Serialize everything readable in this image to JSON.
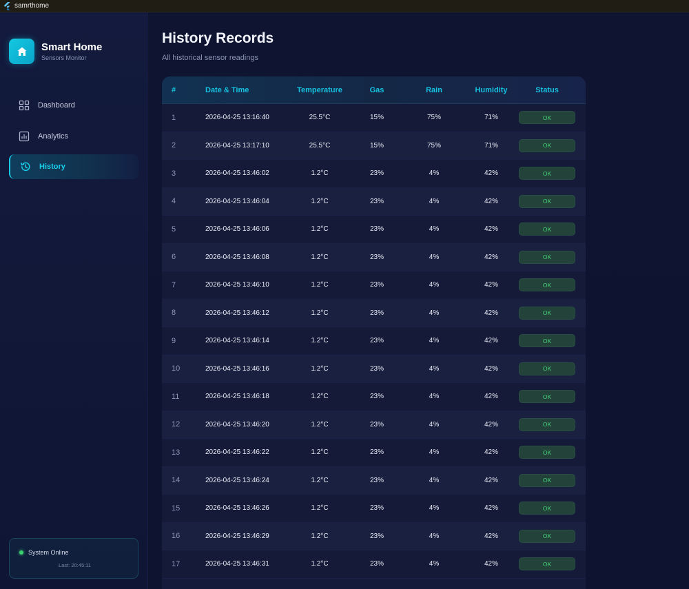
{
  "window": {
    "title": "samrthome",
    "icon": "flutter-icon"
  },
  "brand": {
    "title": "Smart Home",
    "subtitle": "Sensors Monitor",
    "icon": "home-icon"
  },
  "nav": {
    "items": [
      {
        "label": "Dashboard",
        "icon": "grid-icon",
        "active": false
      },
      {
        "label": "Analytics",
        "icon": "bar-chart-icon",
        "active": false
      },
      {
        "label": "History",
        "icon": "history-icon",
        "active": true
      }
    ]
  },
  "system_status": {
    "label": "System Online",
    "last": "Last: 20:45:11"
  },
  "page": {
    "title": "History Records",
    "subtitle": "All historical sensor readings"
  },
  "table": {
    "columns": [
      "#",
      "Date & Time",
      "Temperature",
      "Gas",
      "Rain",
      "Humidity",
      "Status"
    ],
    "rows": [
      {
        "idx": "1",
        "datetime": "2026-04-25 13:16:40",
        "temperature": "25.5°C",
        "gas": "15%",
        "rain": "75%",
        "humidity": "71%",
        "status": "OK"
      },
      {
        "idx": "2",
        "datetime": "2026-04-25 13:17:10",
        "temperature": "25.5°C",
        "gas": "15%",
        "rain": "75%",
        "humidity": "71%",
        "status": "OK"
      },
      {
        "idx": "3",
        "datetime": "2026-04-25 13:46:02",
        "temperature": "1.2°C",
        "gas": "23%",
        "rain": "4%",
        "humidity": "42%",
        "status": "OK"
      },
      {
        "idx": "4",
        "datetime": "2026-04-25 13:46:04",
        "temperature": "1.2°C",
        "gas": "23%",
        "rain": "4%",
        "humidity": "42%",
        "status": "OK"
      },
      {
        "idx": "5",
        "datetime": "2026-04-25 13:46:06",
        "temperature": "1.2°C",
        "gas": "23%",
        "rain": "4%",
        "humidity": "42%",
        "status": "OK"
      },
      {
        "idx": "6",
        "datetime": "2026-04-25 13:46:08",
        "temperature": "1.2°C",
        "gas": "23%",
        "rain": "4%",
        "humidity": "42%",
        "status": "OK"
      },
      {
        "idx": "7",
        "datetime": "2026-04-25 13:46:10",
        "temperature": "1.2°C",
        "gas": "23%",
        "rain": "4%",
        "humidity": "42%",
        "status": "OK"
      },
      {
        "idx": "8",
        "datetime": "2026-04-25 13:46:12",
        "temperature": "1.2°C",
        "gas": "23%",
        "rain": "4%",
        "humidity": "42%",
        "status": "OK"
      },
      {
        "idx": "9",
        "datetime": "2026-04-25 13:46:14",
        "temperature": "1.2°C",
        "gas": "23%",
        "rain": "4%",
        "humidity": "42%",
        "status": "OK"
      },
      {
        "idx": "10",
        "datetime": "2026-04-25 13:46:16",
        "temperature": "1.2°C",
        "gas": "23%",
        "rain": "4%",
        "humidity": "42%",
        "status": "OK"
      },
      {
        "idx": "11",
        "datetime": "2026-04-25 13:46:18",
        "temperature": "1.2°C",
        "gas": "23%",
        "rain": "4%",
        "humidity": "42%",
        "status": "OK"
      },
      {
        "idx": "12",
        "datetime": "2026-04-25 13:46:20",
        "temperature": "1.2°C",
        "gas": "23%",
        "rain": "4%",
        "humidity": "42%",
        "status": "OK"
      },
      {
        "idx": "13",
        "datetime": "2026-04-25 13:46:22",
        "temperature": "1.2°C",
        "gas": "23%",
        "rain": "4%",
        "humidity": "42%",
        "status": "OK"
      },
      {
        "idx": "14",
        "datetime": "2026-04-25 13:46:24",
        "temperature": "1.2°C",
        "gas": "23%",
        "rain": "4%",
        "humidity": "42%",
        "status": "OK"
      },
      {
        "idx": "15",
        "datetime": "2026-04-25 13:46:26",
        "temperature": "1.2°C",
        "gas": "23%",
        "rain": "4%",
        "humidity": "42%",
        "status": "OK"
      },
      {
        "idx": "16",
        "datetime": "2026-04-25 13:46:29",
        "temperature": "1.2°C",
        "gas": "23%",
        "rain": "4%",
        "humidity": "42%",
        "status": "OK"
      },
      {
        "idx": "17",
        "datetime": "2026-04-25 13:46:31",
        "temperature": "1.2°C",
        "gas": "23%",
        "rain": "4%",
        "humidity": "42%",
        "status": "OK"
      }
    ]
  },
  "colors": {
    "accent": "#16c2de",
    "background": "#0f1330",
    "ok_text": "#46d27a",
    "ok_badge": "#22423a",
    "online_dot": "#3bd16f"
  }
}
